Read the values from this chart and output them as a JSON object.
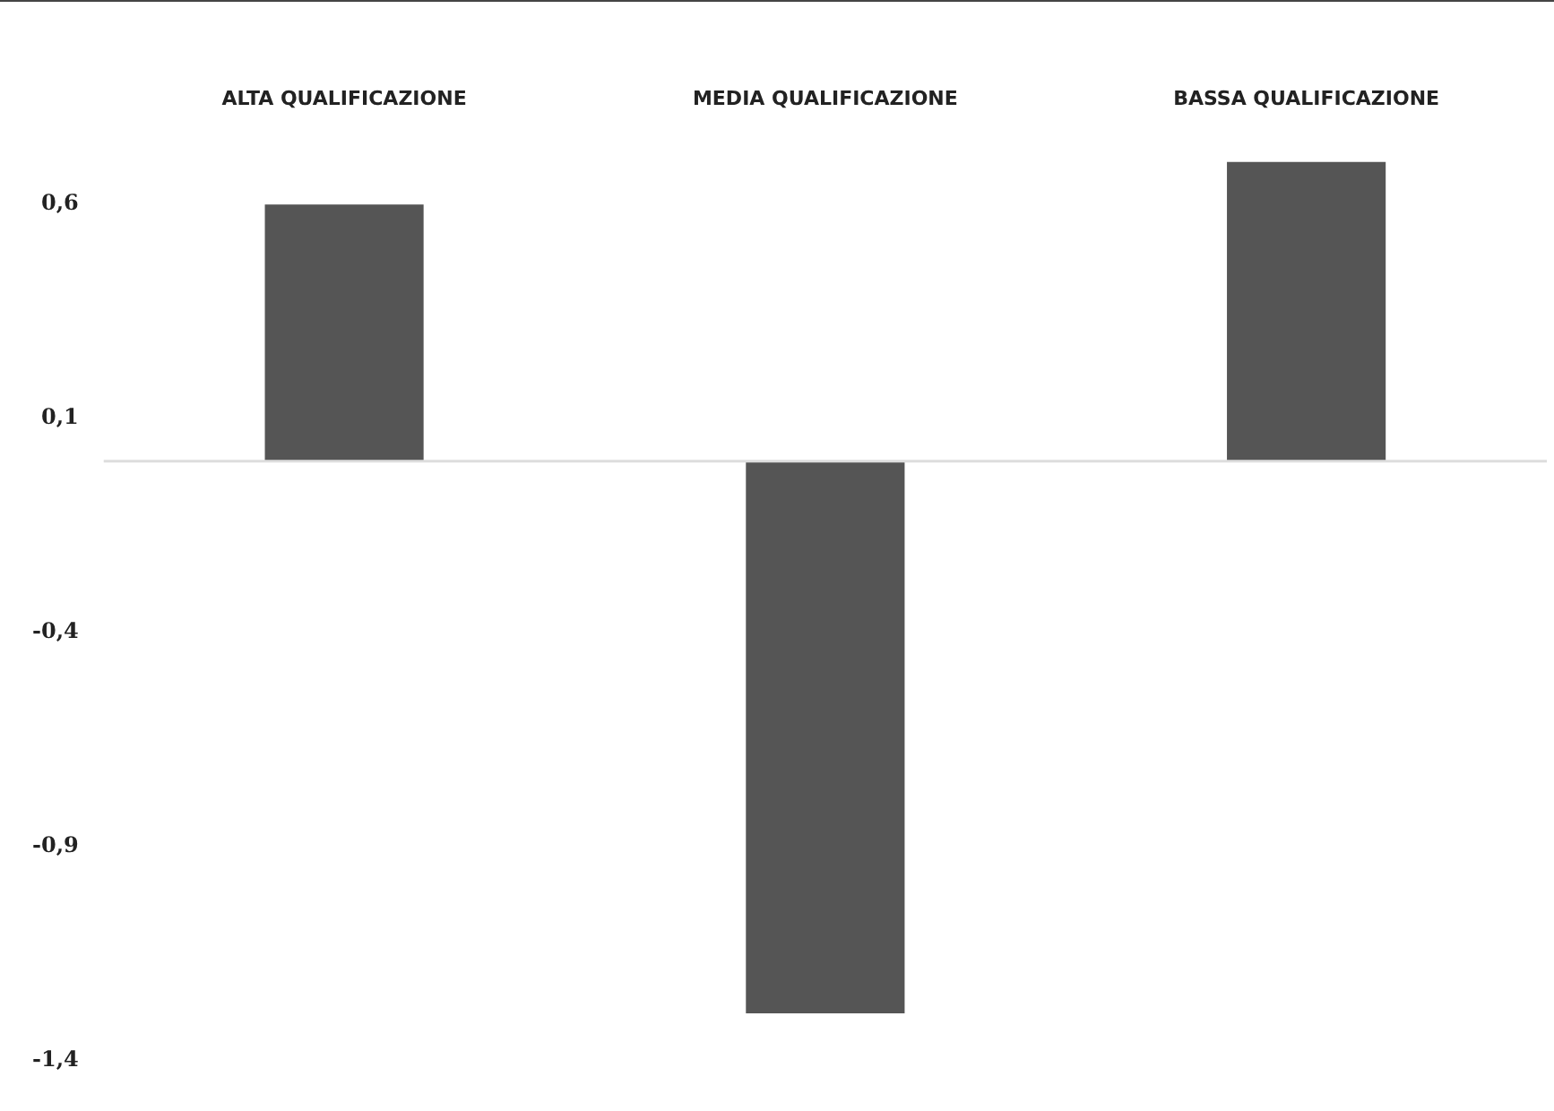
{
  "chart_data": {
    "type": "bar",
    "categories": [
      "ALTA QUALIFICAZIONE",
      "MEDIA QUALIFICAZIONE",
      "BASSA QUALIFICAZIONE"
    ],
    "values": [
      0.6,
      -1.29,
      0.7
    ],
    "color": "#555555",
    "ylim": [
      -1.4,
      0.7
    ],
    "yticks": [
      {
        "value": 0.6,
        "label": "0,6"
      },
      {
        "value": 0.1,
        "label": "0,1"
      },
      {
        "value": -0.4,
        "label": "-0,4"
      },
      {
        "value": -0.9,
        "label": "-0,9"
      },
      {
        "value": -1.4,
        "label": "-1,4"
      }
    ],
    "grid": false,
    "legend": false
  }
}
